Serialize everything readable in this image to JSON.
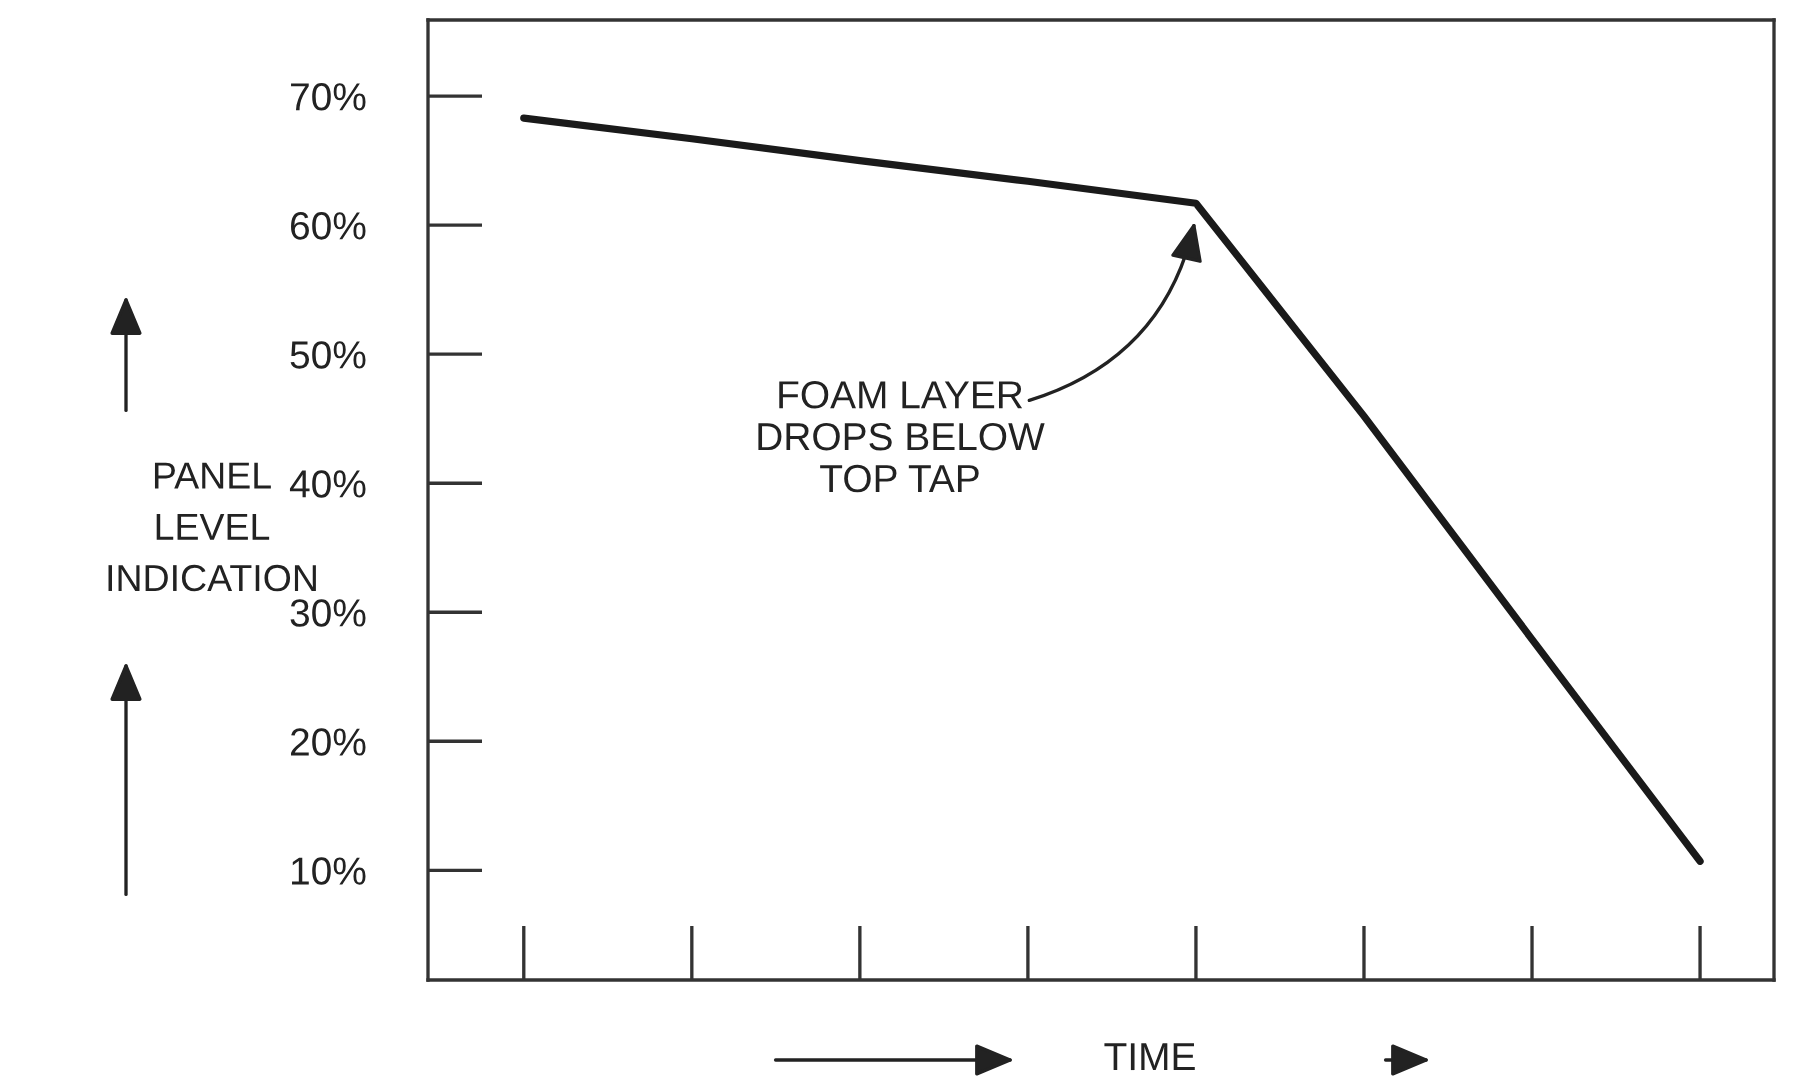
{
  "chart_data": {
    "type": "line",
    "xlabel": "TIME",
    "ylabel": "PANEL\nLEVEL\nINDICATION",
    "categories": [
      null,
      null,
      null,
      null,
      null,
      null,
      null,
      null
    ],
    "series": [
      {
        "color": "#1a1a1a",
        "values": [
          68.3,
          66.7,
          65.0,
          63.4,
          61.7,
          45.2,
          27.9,
          10.7
        ]
      }
    ],
    "ylim": [
      1.5,
      75.9
    ],
    "yticks": [
      {
        "value": 10,
        "label": "10%"
      },
      {
        "value": 20,
        "label": "20%"
      },
      {
        "value": 30,
        "label": "30%"
      },
      {
        "value": 40,
        "label": "40%"
      },
      {
        "value": 50,
        "label": "50%"
      },
      {
        "value": 60,
        "label": "60%"
      },
      {
        "value": 70,
        "label": "70%"
      }
    ],
    "annotations": [
      "FOAM LAYER\nDROPS BELOW\nTOP TAP"
    ],
    "grid": false,
    "marker": "none",
    "line_style": "solid"
  }
}
